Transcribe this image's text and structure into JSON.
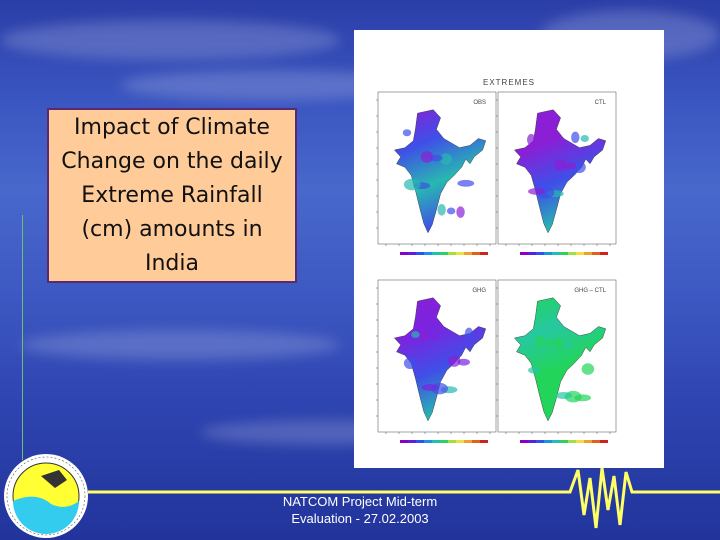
{
  "slide": {
    "title_box": "Impact of Climate Change on the daily Extreme Rainfall (cm) amounts in India",
    "footer": {
      "line1": "NATCOM Project Mid-term",
      "line2": "Evaluation - 27.02.2003"
    }
  },
  "figure": {
    "title": "EXTREMES",
    "panels": [
      {
        "label": "OBS",
        "colors": [
          "#8a1fd6",
          "#3f4fe8",
          "#27b8b0",
          "#3f4fe8"
        ]
      },
      {
        "label": "CTL",
        "colors": [
          "#8a1fd6",
          "#8a1fd6",
          "#3f4fe8",
          "#27b8b0"
        ]
      },
      {
        "label": "GHG",
        "colors": [
          "#8a1fd6",
          "#7a24e0",
          "#3f4fe8",
          "#27b8b0"
        ]
      },
      {
        "label": "GHG – CTL",
        "colors": [
          "#22d45a",
          "#27c8a0",
          "#22d45a",
          "#22d45a"
        ]
      }
    ],
    "colorbar": [
      "#8a00c8",
      "#5a20e0",
      "#3050f0",
      "#2090e0",
      "#20c0b0",
      "#30d060",
      "#a0e040",
      "#f0e040",
      "#f0a030",
      "#e06020",
      "#d02020"
    ]
  },
  "colors": {
    "accent_yellow": "#ffff66",
    "title_box_fill": "#FFCC99",
    "title_box_border": "#5b2a6e"
  }
}
